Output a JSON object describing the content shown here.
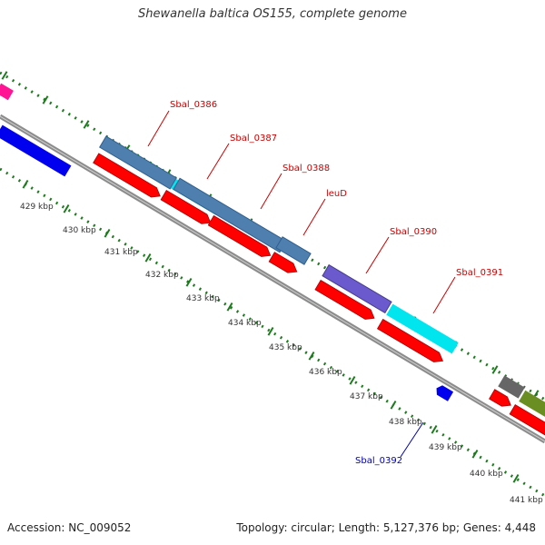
{
  "title": "Shewanella baltica OS155, complete genome",
  "footer": {
    "accession": "Accession: NC_009052",
    "topology": "Topology: circular; Length: 5,127,376 bp; Genes: 4,448"
  },
  "colors": {
    "backbone": "#8c8c8c",
    "tick": "#1e7a1e",
    "cds": "#ff0000",
    "gene_label_forward": "#cc0000",
    "gene_label_reverse": "#0000aa",
    "steelblue": "#4f7fae",
    "cyan": "#00e5ee",
    "purple": "#6a5acd",
    "blue": "#0000ee",
    "magenta": "#ff1493",
    "gray": "#666666",
    "olive": "#6b8e23"
  },
  "kbp_labels": [
    "429 kbp",
    "430 kbp",
    "431 kbp",
    "432 kbp",
    "433 kbp",
    "434 kbp",
    "435 kbp",
    "436 kbp",
    "437 kbp",
    "438 kbp",
    "439 kbp",
    "440 kbp",
    "441 kbp"
  ],
  "gene_labels": [
    {
      "name": "Sbal_0386",
      "strand": "forward"
    },
    {
      "name": "Sbal_0387",
      "strand": "forward"
    },
    {
      "name": "Sbal_0388",
      "strand": "forward"
    },
    {
      "name": "leuD",
      "strand": "forward"
    },
    {
      "name": "Sbal_0390",
      "strand": "forward"
    },
    {
      "name": "Sbal_0391",
      "strand": "forward"
    },
    {
      "name": "Sbal_0392",
      "strand": "reverse"
    }
  ]
}
